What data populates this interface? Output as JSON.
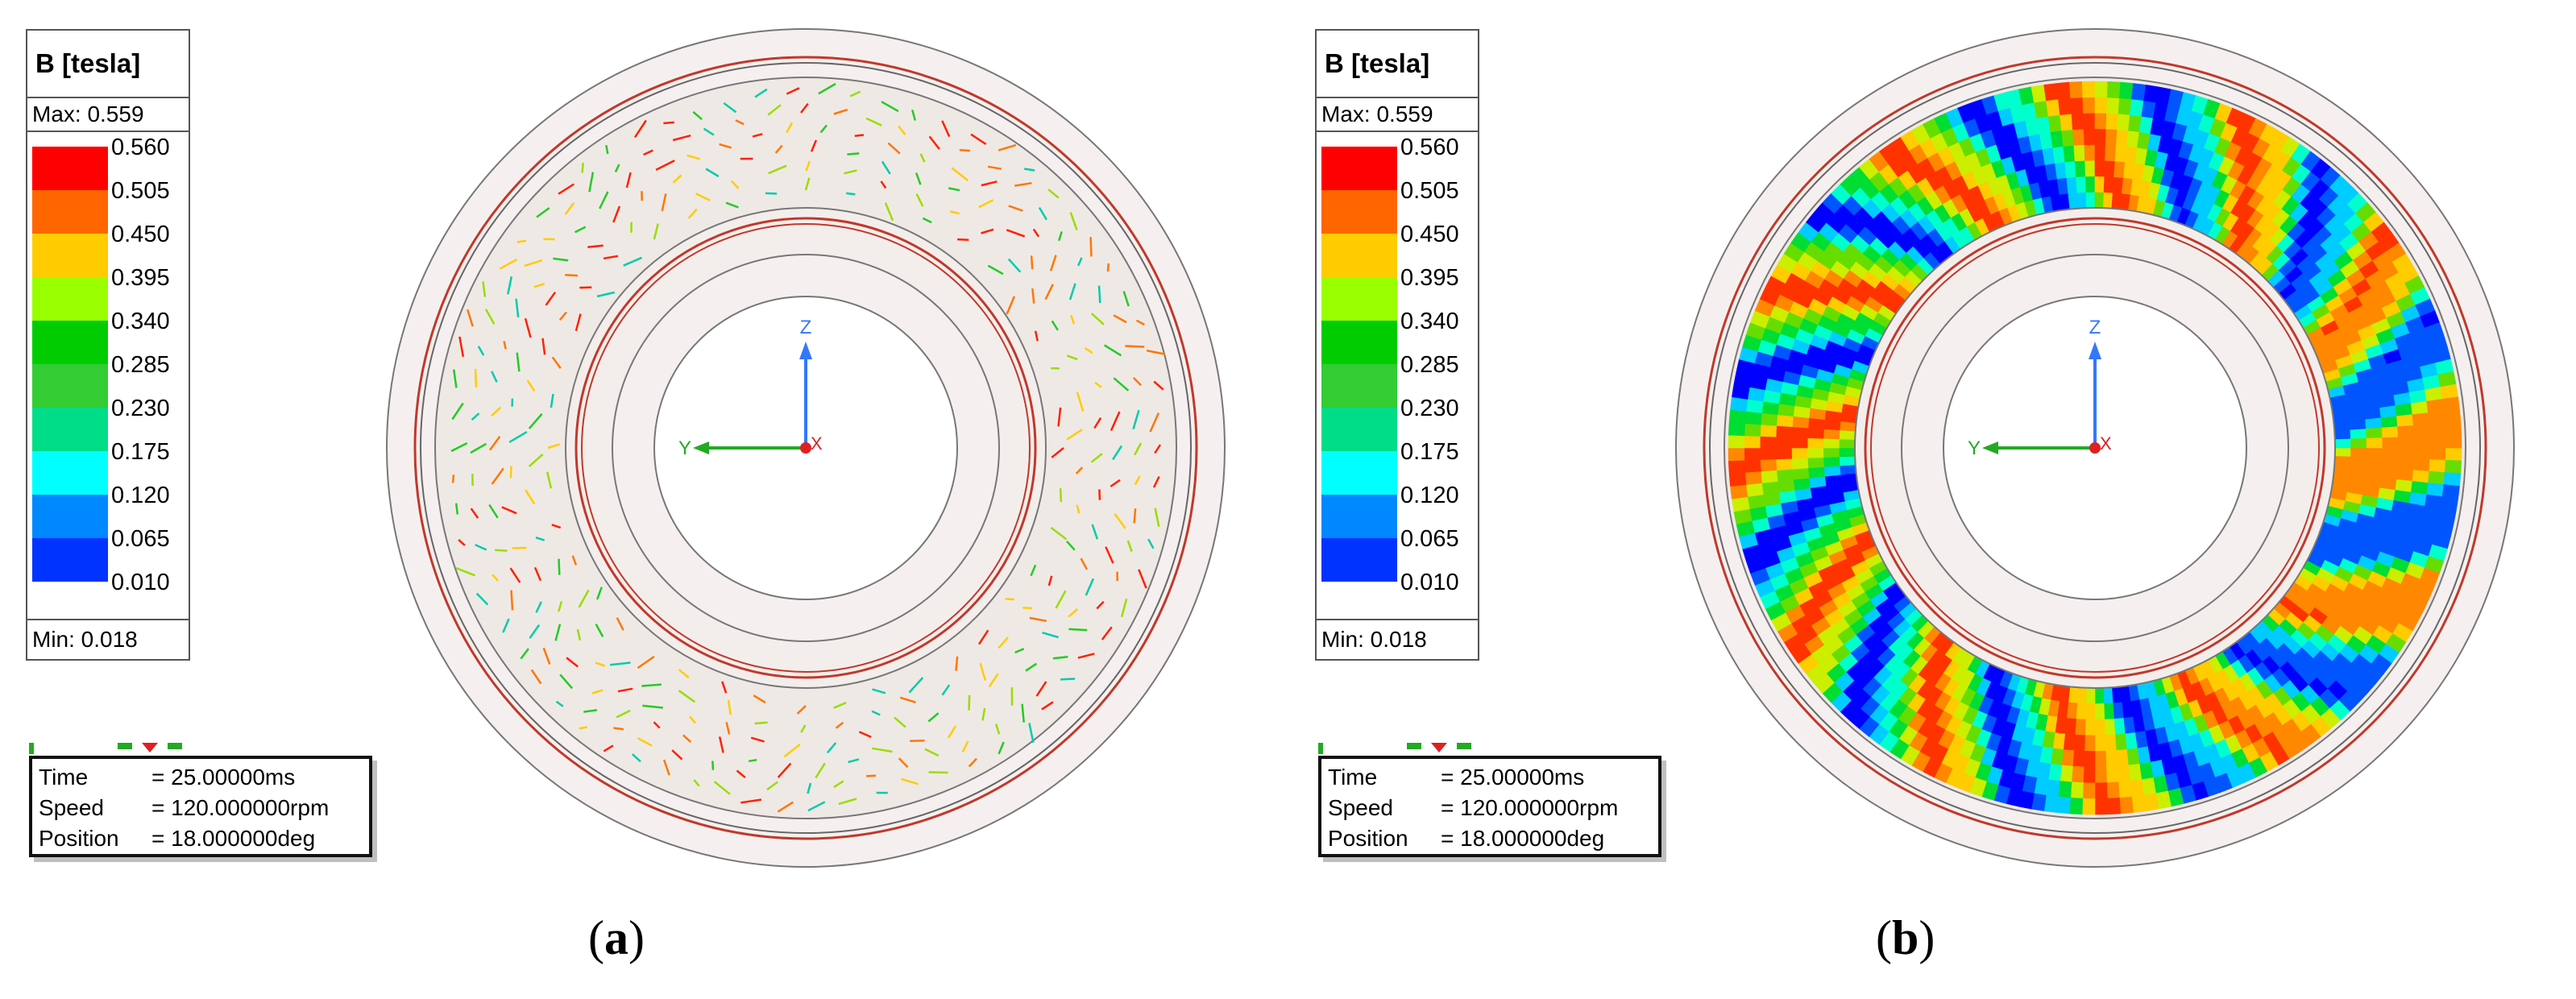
{
  "legend": {
    "title": "B [tesla]",
    "max_label": "Max: 0.559",
    "min_label": "Min: 0.018",
    "ticks": [
      "0.560",
      "0.505",
      "0.450",
      "0.395",
      "0.340",
      "0.285",
      "0.230",
      "0.175",
      "0.120",
      "0.065",
      "0.010"
    ],
    "colors": [
      "#ff0000",
      "#ff6600",
      "#ffcc00",
      "#99ff00",
      "#00cc00",
      "#33cc33",
      "#00dd88",
      "#00ffff",
      "#0088ff",
      "#0033ff",
      "#0000ff"
    ]
  },
  "info": {
    "time_key": "Time",
    "time_val": "= 25.00000ms",
    "speed_key": "Speed",
    "speed_val": "= 120.000000rpm",
    "position_key": "Position",
    "position_val": "= 18.000000deg"
  },
  "axes": {
    "x": "X",
    "y": "Y",
    "z": "Z"
  },
  "panels": [
    {
      "caption_open": "(",
      "caption_letter": "a",
      "caption_close": ")"
    },
    {
      "caption_open": "(",
      "caption_letter": "b",
      "caption_close": ")"
    }
  ],
  "colors": {
    "ring_fill": "#efe9e6",
    "ring_edge": "#c0392b",
    "outer_fill": "#f5f0ef",
    "axis_z": "#3377ff",
    "axis_y": "#22aa22",
    "axis_x": "#e02020"
  }
}
